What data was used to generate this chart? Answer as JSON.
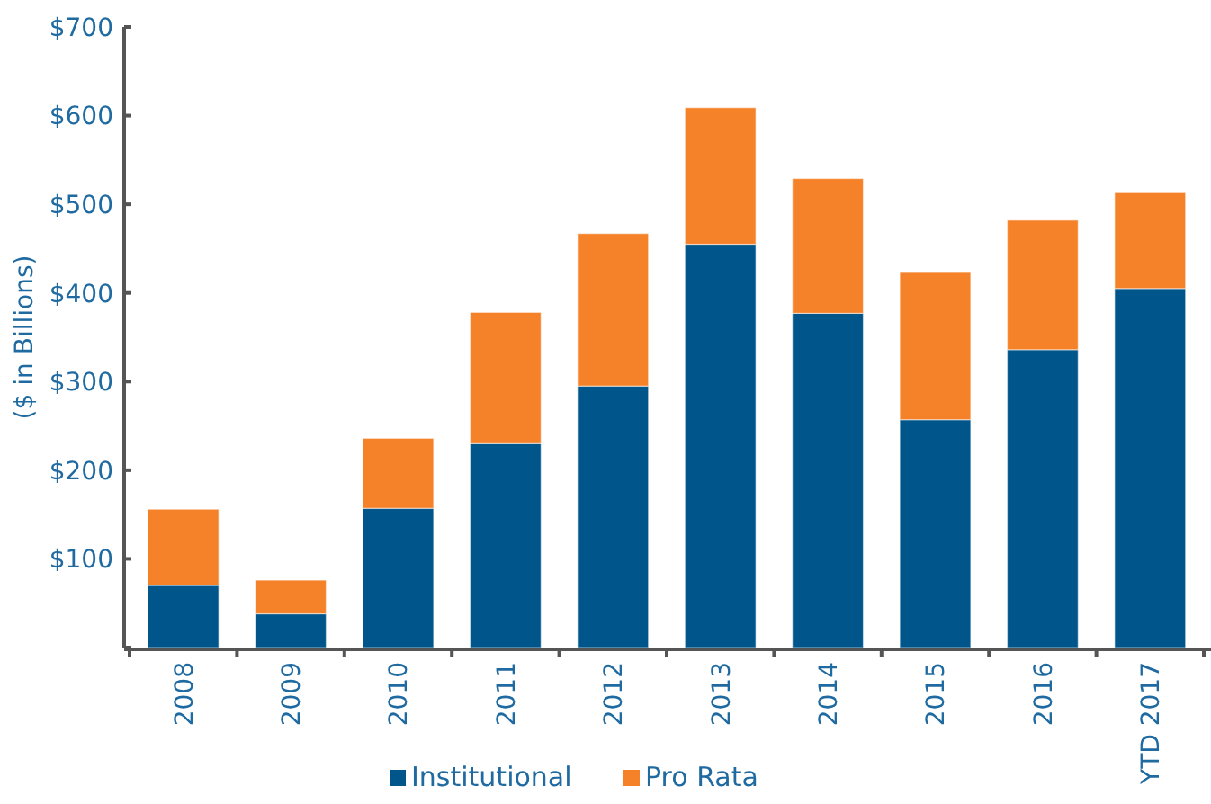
{
  "chart_data": {
    "type": "bar",
    "stacked": true,
    "ylabel": "($ in Billions)",
    "categories": [
      "2008",
      "2009",
      "2010",
      "2011",
      "2012",
      "2013",
      "2014",
      "2015",
      "2016",
      "YTD 2017"
    ],
    "series": [
      {
        "name": "Institutional",
        "color": "#00558a",
        "values": [
          70,
          38,
          157,
          230,
          295,
          455,
          377,
          257,
          336,
          405
        ]
      },
      {
        "name": "Pro Rata",
        "color": "#f58229",
        "values": [
          86,
          38,
          79,
          148,
          172,
          154,
          152,
          166,
          146,
          108
        ]
      }
    ],
    "ylim": [
      0,
      700
    ],
    "yticks": [
      {
        "value": 0,
        "label": null
      },
      {
        "value": 100,
        "label": "$100"
      },
      {
        "value": 200,
        "label": "$200"
      },
      {
        "value": 300,
        "label": "$300"
      },
      {
        "value": 400,
        "label": "$400"
      },
      {
        "value": 500,
        "label": "$500"
      },
      {
        "value": 600,
        "label": "$600"
      },
      {
        "value": 700,
        "label": "$700"
      }
    ],
    "legend": "bottom",
    "grid": false
  }
}
